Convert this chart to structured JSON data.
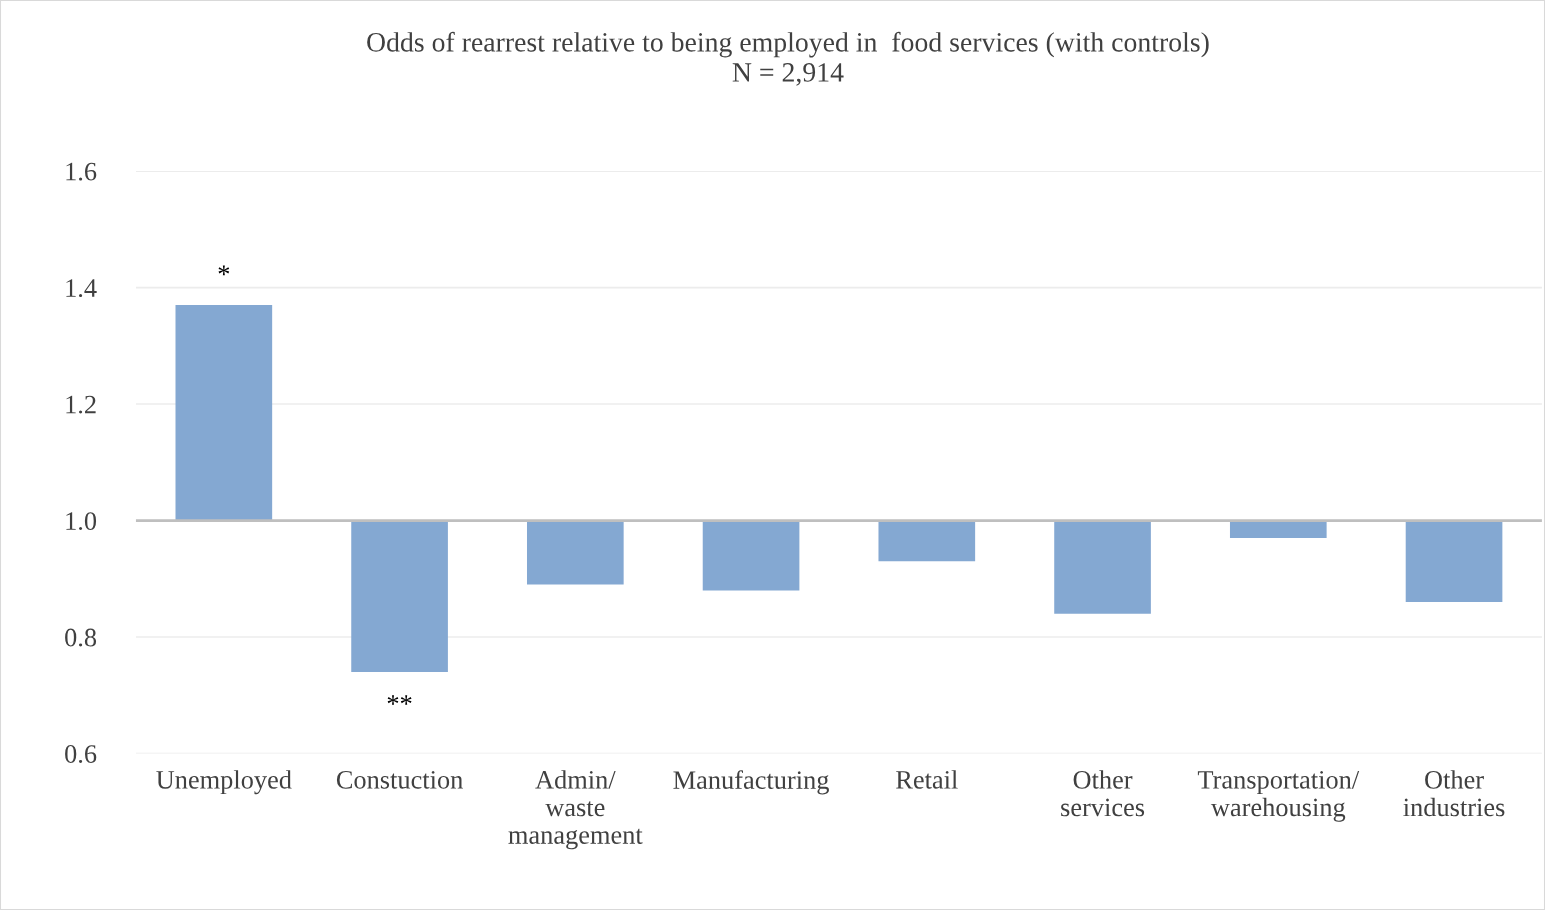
{
  "chart_data": {
    "type": "bar",
    "title": "Odds of rearrest relative to being employed in  food services (with controls)\nN = 2,914",
    "categories": [
      "Unemployed",
      "Constuction",
      "Admin/\nwaste\nmanagement",
      "Manufacturing",
      "Retail",
      "Other\nservices",
      "Transportation/\nwarehousing",
      "Other\nindustries"
    ],
    "base": [
      1.0,
      1.0,
      1.0,
      1.0,
      1.0,
      1.0,
      1.0,
      1.0
    ],
    "values": [
      0.37,
      -0.26,
      -0.11,
      -0.12,
      -0.07,
      -0.16,
      -0.03,
      -0.14
    ],
    "color": "#84a8d2",
    "ylim": [
      0.6,
      1.6
    ],
    "yticks": [
      {
        "value": 0.6,
        "label": "0.6"
      },
      {
        "value": 0.8,
        "label": "0.8"
      },
      {
        "value": 1.0,
        "label": "1.0"
      },
      {
        "value": 1.2,
        "label": "1.2"
      },
      {
        "value": 1.4,
        "label": "1.4"
      },
      {
        "value": 1.6,
        "label": "1.6"
      }
    ],
    "grid": "y",
    "ref_lines": [
      {
        "axis": "y",
        "value": 1.0,
        "color": "#bfbfbf"
      }
    ],
    "annotations": [
      {
        "text": "*",
        "x": "Unemployed",
        "y": 1.37
      },
      {
        "text": "**",
        "x": "Constuction",
        "y": 0.74
      }
    ]
  }
}
